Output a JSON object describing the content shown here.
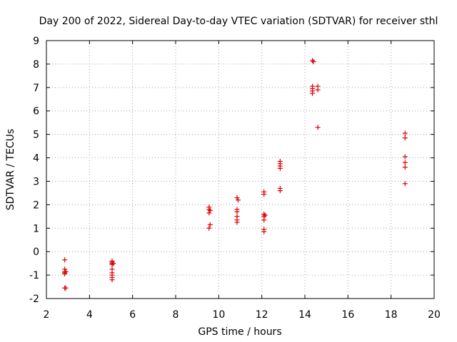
{
  "chart_data": {
    "type": "scatter",
    "title": "Day 200 of 2022, Sidereal Day-to-day VTEC variation (SDTVAR) for receiver sthl",
    "xlabel": "GPS time / hours",
    "ylabel": "SDTVAR / TECUs",
    "xlim": [
      2,
      20
    ],
    "ylim": [
      -2,
      9
    ],
    "xticks": [
      "2",
      "4",
      "6",
      "8",
      "10",
      "12",
      "14",
      "16",
      "18",
      "20"
    ],
    "yticks": [
      "-2",
      "-1",
      "0",
      "1",
      "2",
      "3",
      "4",
      "5",
      "6",
      "7",
      "8",
      "9"
    ],
    "grid": true,
    "marker": "plus",
    "color": "#dd0000",
    "series": [
      {
        "name": "SDTVAR",
        "points": [
          [
            2.85,
            -0.35
          ],
          [
            2.85,
            -0.75
          ],
          [
            2.85,
            -0.85
          ],
          [
            2.85,
            -0.9
          ],
          [
            2.85,
            -0.95
          ],
          [
            2.9,
            -0.85
          ],
          [
            2.85,
            -1.55
          ],
          [
            2.9,
            -1.55
          ],
          [
            5.05,
            -0.4
          ],
          [
            5.05,
            -0.45
          ],
          [
            5.05,
            -0.5
          ],
          [
            5.1,
            -0.5
          ],
          [
            5.05,
            -0.55
          ],
          [
            5.05,
            -0.75
          ],
          [
            5.05,
            -0.9
          ],
          [
            5.05,
            -1.0
          ],
          [
            5.05,
            -1.1
          ],
          [
            5.05,
            -1.2
          ],
          [
            9.55,
            1.9
          ],
          [
            9.55,
            1.8
          ],
          [
            9.6,
            1.75
          ],
          [
            9.55,
            1.65
          ],
          [
            9.6,
            1.15
          ],
          [
            9.55,
            1.0
          ],
          [
            10.85,
            2.3
          ],
          [
            10.9,
            2.2
          ],
          [
            10.85,
            1.8
          ],
          [
            10.85,
            1.7
          ],
          [
            10.85,
            1.5
          ],
          [
            10.85,
            1.35
          ],
          [
            10.85,
            1.25
          ],
          [
            12.1,
            2.55
          ],
          [
            12.1,
            2.45
          ],
          [
            12.1,
            1.6
          ],
          [
            12.15,
            1.55
          ],
          [
            12.1,
            1.5
          ],
          [
            12.1,
            1.35
          ],
          [
            12.1,
            0.95
          ],
          [
            12.1,
            0.85
          ],
          [
            12.85,
            3.85
          ],
          [
            12.85,
            3.75
          ],
          [
            12.85,
            3.65
          ],
          [
            12.85,
            3.55
          ],
          [
            12.85,
            2.7
          ],
          [
            12.85,
            2.6
          ],
          [
            14.35,
            8.15
          ],
          [
            14.4,
            8.1
          ],
          [
            14.35,
            7.05
          ],
          [
            14.35,
            6.95
          ],
          [
            14.35,
            6.85
          ],
          [
            14.35,
            6.75
          ],
          [
            14.6,
            7.05
          ],
          [
            14.6,
            6.9
          ],
          [
            14.6,
            5.3
          ],
          [
            18.65,
            5.05
          ],
          [
            18.65,
            4.85
          ],
          [
            18.65,
            4.05
          ],
          [
            18.65,
            3.8
          ],
          [
            18.65,
            3.6
          ],
          [
            18.65,
            2.9
          ]
        ]
      }
    ]
  }
}
